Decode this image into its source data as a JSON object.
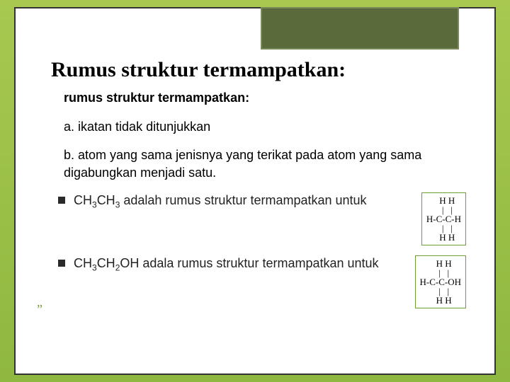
{
  "title": "Rumus struktur termampatkan:",
  "subtitle": "rumus struktur termampatkan:",
  "points": {
    "a": "a. ikatan tidak ditunjukkan",
    "b": "b. atom yang sama jenisnya yang terikat pada          atom yang sama digabungkan menjadi satu."
  },
  "bullets": {
    "first_pre": "CH",
    "first_s1": "3",
    "first_mid": "CH",
    "first_s2": "3",
    "first_post": " adalah rumus struktur termampatkan untuk",
    "second_pre": "CH",
    "second_s1": "3",
    "second_mid": "CH",
    "second_s2": "2",
    "second_post": "OH adala rumus struktur termampatkan untuk"
  },
  "formulas": {
    "ethane": "   H H\n   |   |\nH-C-C-H\n   |   |\n   H H",
    "ethanol": "   H H\n   |   |\nH-C-C-OH\n   |   |\n   H H"
  },
  "colors": {
    "bg_top": "#a8c850",
    "header_box": "#5a6a3a",
    "formula_border": "#6aa030"
  }
}
